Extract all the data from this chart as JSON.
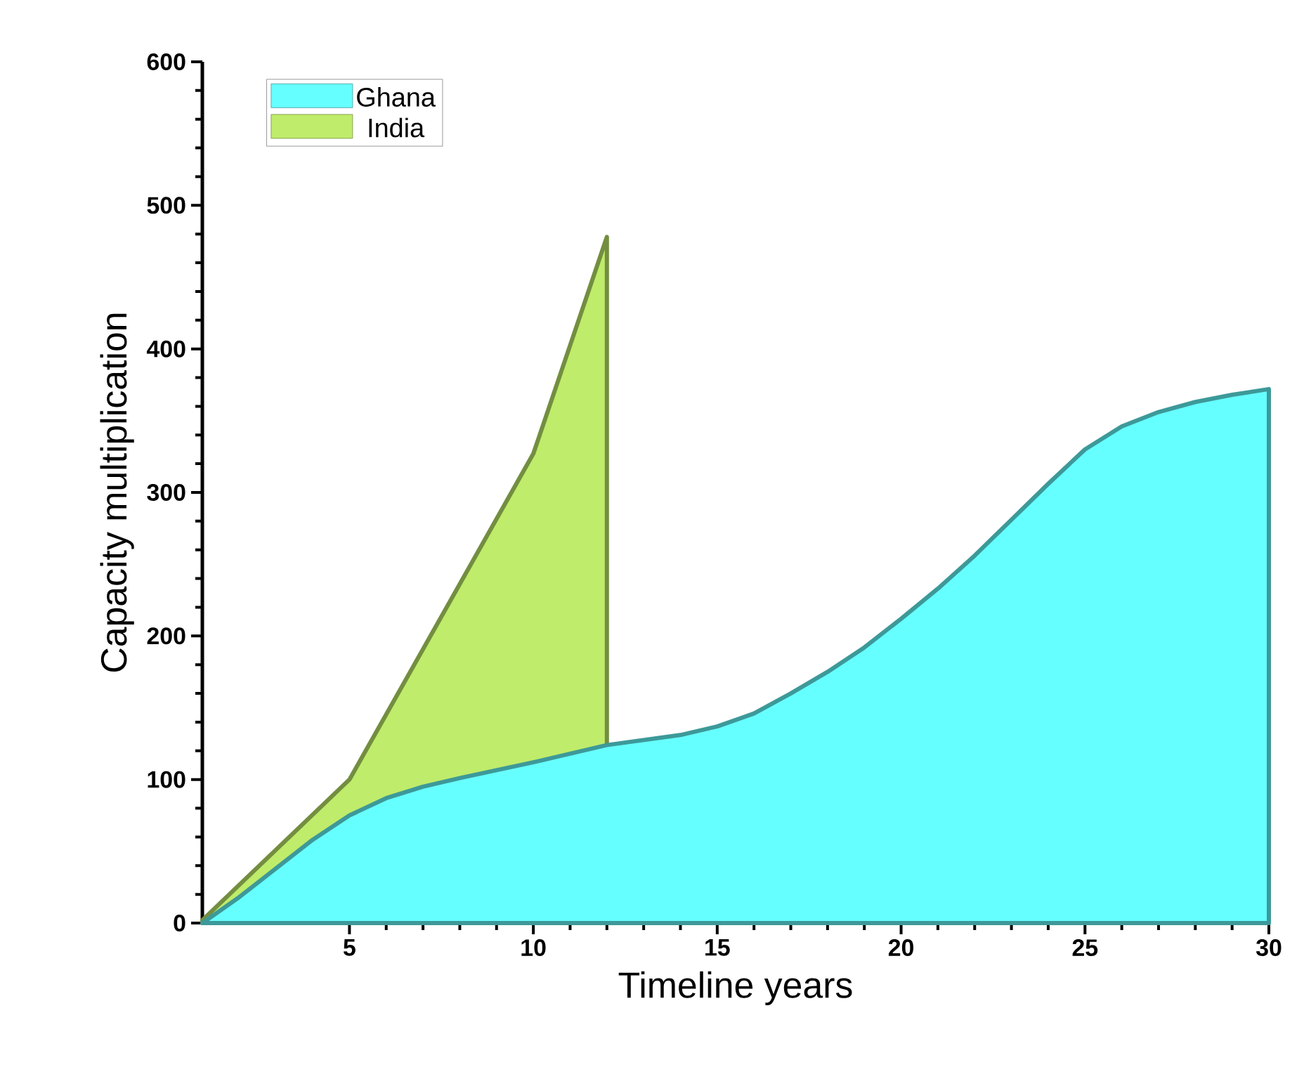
{
  "chart_data": {
    "type": "area",
    "xlabel": "Timeline years",
    "ylabel": "Capacity multiplication",
    "xlim": [
      1,
      30
    ],
    "ylim": [
      0,
      600
    ],
    "xticks": [
      5,
      10,
      15,
      20,
      25,
      30
    ],
    "yticks": [
      0,
      100,
      200,
      300,
      400,
      500,
      600
    ],
    "grid": false,
    "legend": "top left",
    "marker": "none",
    "series": [
      {
        "name": "Ghana",
        "color": "#66ffff",
        "x": [
          1,
          2,
          3,
          4,
          5,
          6,
          7,
          8,
          10,
          12,
          14,
          15,
          16,
          17,
          18,
          19,
          20,
          21,
          22,
          23,
          24,
          25,
          26,
          27,
          28,
          29,
          30
        ],
        "values": [
          0,
          18,
          38,
          58,
          75,
          87,
          95,
          101,
          112,
          124,
          131,
          137,
          146,
          160,
          175,
          192,
          212,
          233,
          256,
          281,
          306,
          330,
          346,
          356,
          363,
          368,
          372
        ]
      },
      {
        "name": "India",
        "color": "#bfec6a",
        "x": [
          1,
          5,
          10,
          12
        ],
        "values": [
          2,
          100,
          327,
          478
        ]
      }
    ]
  }
}
